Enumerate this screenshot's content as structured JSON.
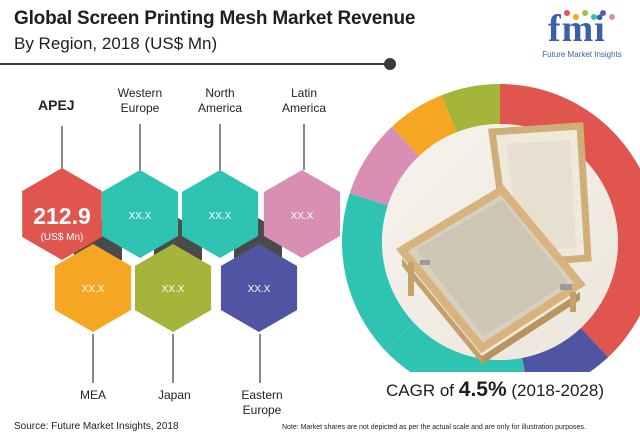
{
  "header": {
    "title": "Global Screen Printing Mesh Market Revenue",
    "subtitle": "By Region, 2018 (US$ Mn)"
  },
  "logo": {
    "word": "fmi",
    "tagline": "Future Market Insights",
    "dot_colors": [
      "#e0564f",
      "#f5a623",
      "#9bc53d",
      "#2fc4b2",
      "#5b5ba8",
      "#d98fb4"
    ]
  },
  "regions": [
    {
      "name": "APEJ",
      "value": "212.9",
      "unit": "(US$ Mn)",
      "color": "#e0564f"
    },
    {
      "name": "Western Europe",
      "value": "XX.X",
      "color": "#2fc4b2"
    },
    {
      "name": "North America",
      "value": "XX.X",
      "color": "#2fc4b2"
    },
    {
      "name": "Latin America",
      "value": "XX.X",
      "color": "#d98fb4"
    },
    {
      "name": "MEA",
      "value": "XX.X",
      "color": "#f5a623"
    },
    {
      "name": "Japan",
      "value": "XX.X",
      "color": "#a5b53a"
    },
    {
      "name": "Eastern Europe",
      "value": "XX.X",
      "color": "#4f55a3"
    }
  ],
  "chart_data": {
    "type": "pie",
    "categories": [
      "APEJ",
      "Western Europe",
      "North America",
      "Latin America",
      "MEA",
      "Japan",
      "Eastern Europe"
    ],
    "values": [
      212.9,
      null,
      null,
      null,
      null,
      null,
      null
    ],
    "shares_estimated": [
      0.38,
      0.16,
      0.17,
      0.08,
      0.06,
      0.06,
      0.09
    ],
    "colors": [
      "#e0564f",
      "#2fc4b2",
      "#2fc4b2",
      "#d98fb4",
      "#f5a623",
      "#a5b53a",
      "#4f55a3"
    ],
    "unit": "US$ Mn"
  },
  "cagr": {
    "prefix": "CAGR of",
    "value": "4.5%",
    "period": "(2018-2028)"
  },
  "footer": {
    "source": "Source: Future Market Insights, 2018",
    "note": "Note: Market shares are not depicted as per the actual scale and are only for illustration purposes."
  }
}
